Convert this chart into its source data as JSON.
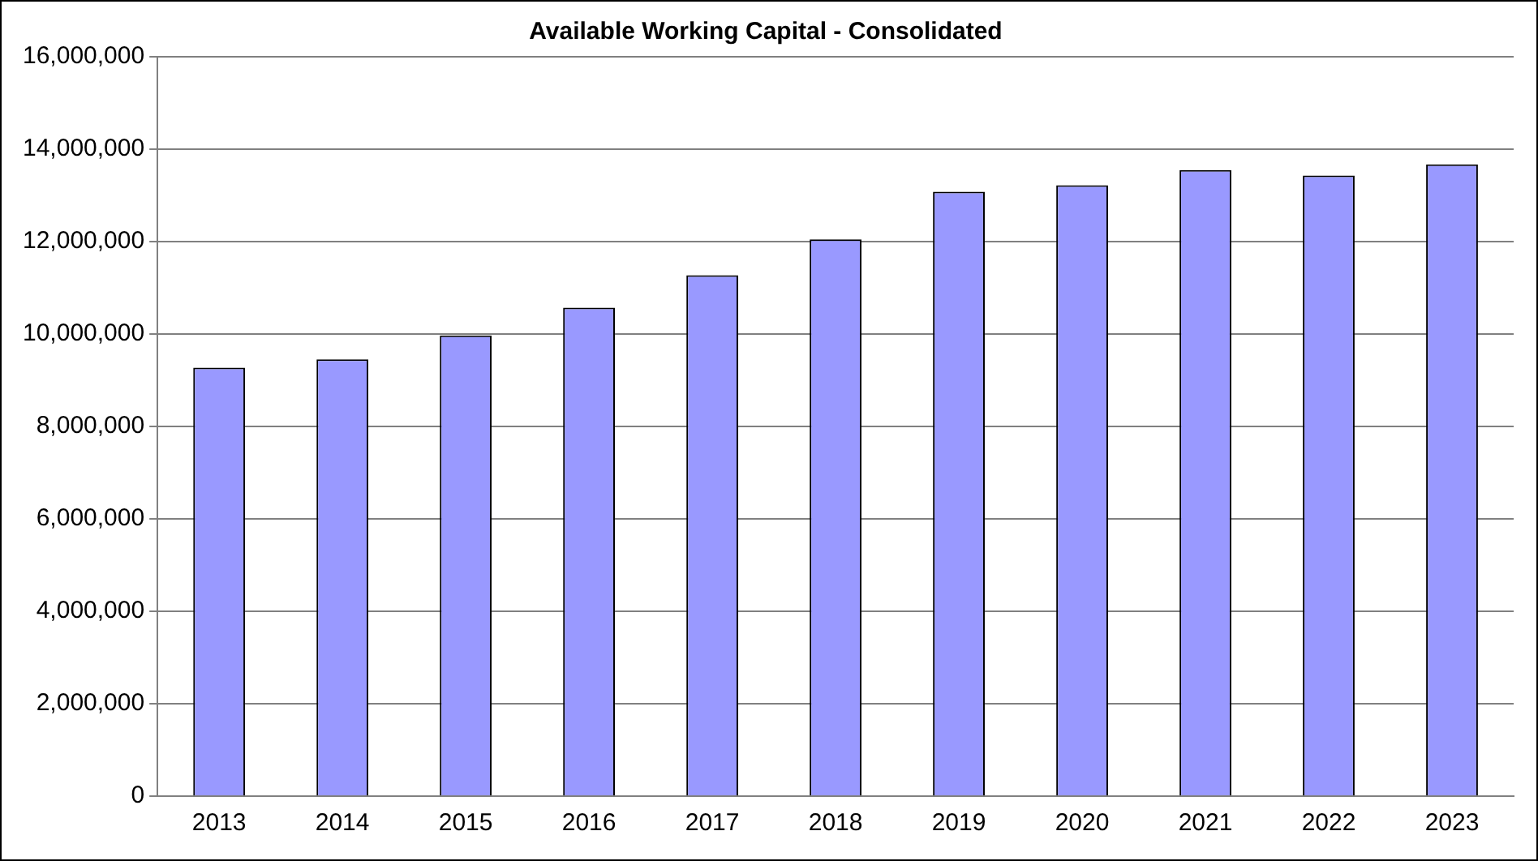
{
  "chart_data": {
    "type": "bar",
    "title": "Available Working Capital - Consolidated",
    "categories": [
      "2013",
      "2014",
      "2015",
      "2016",
      "2017",
      "2018",
      "2019",
      "2020",
      "2021",
      "2022",
      "2023"
    ],
    "values": [
      9270000,
      9450000,
      9970000,
      10570000,
      11270000,
      12050000,
      13080000,
      13220000,
      13550000,
      13430000,
      13670000
    ],
    "color": "#9999ff",
    "ylim": [
      0,
      16000000
    ],
    "yticks": [
      0,
      {
        "value": 2000000,
        "label": "2,000,000"
      },
      {
        "value": 4000000,
        "label": "4,000,000"
      },
      {
        "value": 6000000,
        "label": "6,000,000"
      },
      {
        "value": 8000000,
        "label": "8,000,000"
      },
      {
        "value": 10000000,
        "label": "10,000,000"
      },
      {
        "value": 12000000,
        "label": "12,000,000"
      },
      {
        "value": 14000000,
        "label": "14,000,000"
      },
      {
        "value": 16000000,
        "label": "16,000,000"
      }
    ],
    "grid": "y",
    "legend": false
  }
}
